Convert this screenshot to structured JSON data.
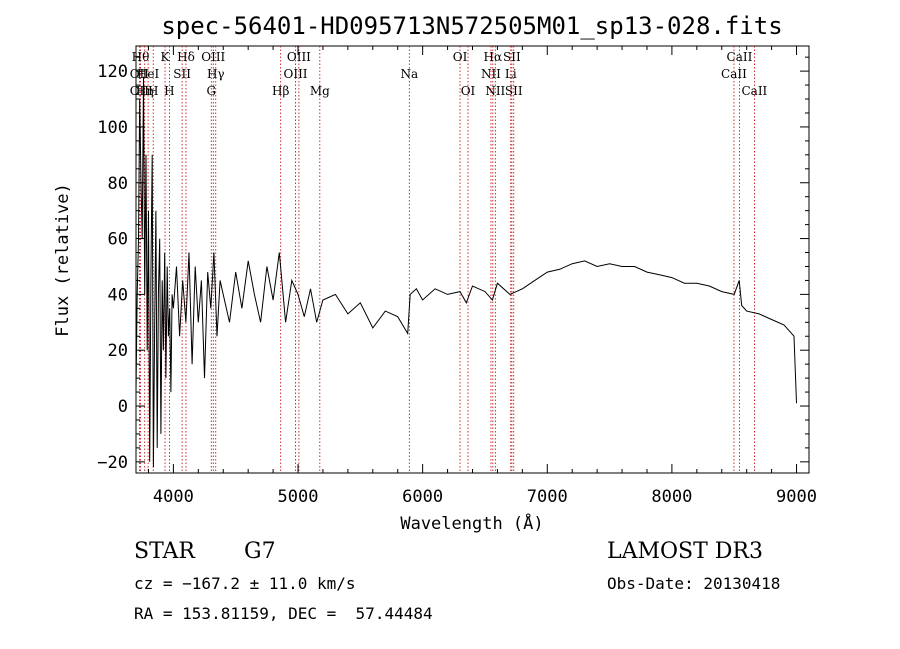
{
  "chart_data": {
    "type": "line",
    "title": "spec-56401-HD095713N572505M01_sp13-028.fits",
    "xlabel": "Wavelength (Å)",
    "ylabel": "Flux (relative)",
    "xlim": [
      3700,
      9100
    ],
    "ylim": [
      -24,
      129
    ],
    "x_ticks": [
      4000,
      5000,
      6000,
      7000,
      8000,
      9000
    ],
    "x_tick_labels": [
      "4000",
      "5000",
      "6000",
      "7000",
      "8000",
      "9000"
    ],
    "y_ticks": [
      -20,
      0,
      20,
      40,
      60,
      80,
      100,
      120
    ],
    "y_tick_labels": [
      "−20",
      "0",
      "20",
      "40",
      "60",
      "80",
      "100",
      "120"
    ],
    "series": [
      {
        "name": "flux",
        "x": [
          3700,
          3710,
          3720,
          3730,
          3740,
          3750,
          3760,
          3770,
          3780,
          3790,
          3800,
          3810,
          3820,
          3830,
          3840,
          3850,
          3860,
          3870,
          3880,
          3890,
          3900,
          3910,
          3920,
          3930,
          3940,
          3950,
          3960,
          3970,
          3980,
          3990,
          4000,
          4025,
          4050,
          4075,
          4100,
          4125,
          4150,
          4175,
          4200,
          4225,
          4250,
          4275,
          4300,
          4325,
          4350,
          4375,
          4400,
          4450,
          4500,
          4550,
          4600,
          4650,
          4700,
          4750,
          4800,
          4850,
          4900,
          4950,
          5000,
          5050,
          5100,
          5150,
          5200,
          5300,
          5400,
          5500,
          5600,
          5700,
          5800,
          5880,
          5900,
          5950,
          6000,
          6100,
          6200,
          6300,
          6350,
          6400,
          6500,
          6560,
          6600,
          6700,
          6800,
          6900,
          7000,
          7100,
          7200,
          7300,
          7400,
          7500,
          7600,
          7700,
          7800,
          7900,
          8000,
          8100,
          8200,
          8300,
          8400,
          8500,
          8540,
          8560,
          8600,
          8700,
          8800,
          8900,
          8980,
          9000
        ],
        "values": [
          5,
          40,
          60,
          110,
          80,
          60,
          118,
          40,
          90,
          20,
          70,
          -20,
          50,
          90,
          -22,
          30,
          70,
          -15,
          40,
          60,
          -10,
          45,
          20,
          55,
          10,
          50,
          25,
          35,
          5,
          40,
          35,
          50,
          25,
          45,
          30,
          55,
          15,
          50,
          30,
          45,
          10,
          48,
          35,
          55,
          25,
          45,
          40,
          30,
          48,
          35,
          52,
          40,
          30,
          50,
          38,
          55,
          30,
          45,
          40,
          32,
          42,
          30,
          38,
          40,
          33,
          37,
          28,
          34,
          32,
          26,
          40,
          42,
          38,
          42,
          40,
          41,
          37,
          43,
          41,
          38,
          44,
          40,
          42,
          45,
          48,
          49,
          51,
          52,
          50,
          51,
          50,
          50,
          48,
          47,
          46,
          44,
          44,
          43,
          41,
          40,
          45,
          36,
          34,
          33,
          31,
          29,
          25,
          1
        ]
      }
    ],
    "line_labels": [
      {
        "wl": 3736,
        "name": "Hθ",
        "row": 1
      },
      {
        "wl": 3727,
        "name": "OII",
        "row": 2
      },
      {
        "wl": 3727,
        "name": "OII",
        "row": 3
      },
      {
        "wl": 3770,
        "name": "Hη",
        "row": 3
      },
      {
        "wl": 3797,
        "name": "HeI",
        "row": 2
      },
      {
        "wl": 3838,
        "name": "H",
        "row": 3
      },
      {
        "wl": 3933,
        "name": "K",
        "row": 1
      },
      {
        "wl": 3968,
        "name": "H",
        "row": 3
      },
      {
        "wl": 4070,
        "name": "SII",
        "row": 2
      },
      {
        "wl": 4101,
        "name": "Hδ",
        "row": 1
      },
      {
        "wl": 4304,
        "name": "G",
        "row": 3
      },
      {
        "wl": 4320,
        "name": "OIII",
        "row": 1
      },
      {
        "wl": 4340,
        "name": "Hγ",
        "row": 2
      },
      {
        "wl": 4861,
        "name": "Hβ",
        "row": 3
      },
      {
        "wl": 4980,
        "name": "OIII",
        "row": 2
      },
      {
        "wl": 5007,
        "name": "OIII",
        "row": 1
      },
      {
        "wl": 5175,
        "name": "Mg",
        "row": 3
      },
      {
        "wl": 5893,
        "name": "Na",
        "row": 2
      },
      {
        "wl": 6300,
        "name": "OI",
        "row": 1
      },
      {
        "wl": 6364,
        "name": "OI",
        "row": 3
      },
      {
        "wl": 6548,
        "name": "NII",
        "row": 2
      },
      {
        "wl": 6563,
        "name": "Hα",
        "row": 1
      },
      {
        "wl": 6583,
        "name": "NII",
        "row": 3
      },
      {
        "wl": 6707,
        "name": "Li",
        "row": 2
      },
      {
        "wl": 6716,
        "name": "SII",
        "row": 1
      },
      {
        "wl": 6731,
        "name": "SII",
        "row": 3
      },
      {
        "wl": 8498,
        "name": "CaII",
        "row": 2
      },
      {
        "wl": 8542,
        "name": "CaII",
        "row": 1
      },
      {
        "wl": 8662,
        "name": "CaII",
        "row": 3
      }
    ]
  },
  "footer": {
    "object_type": "STAR",
    "subclass": "G7",
    "survey": "LAMOST DR3",
    "velocity": "cz = −167.2 ± 11.0 km/s",
    "obs_date": "Obs-Date: 20130418",
    "coords": "RA = 153.81159, DEC =  57.44484"
  }
}
